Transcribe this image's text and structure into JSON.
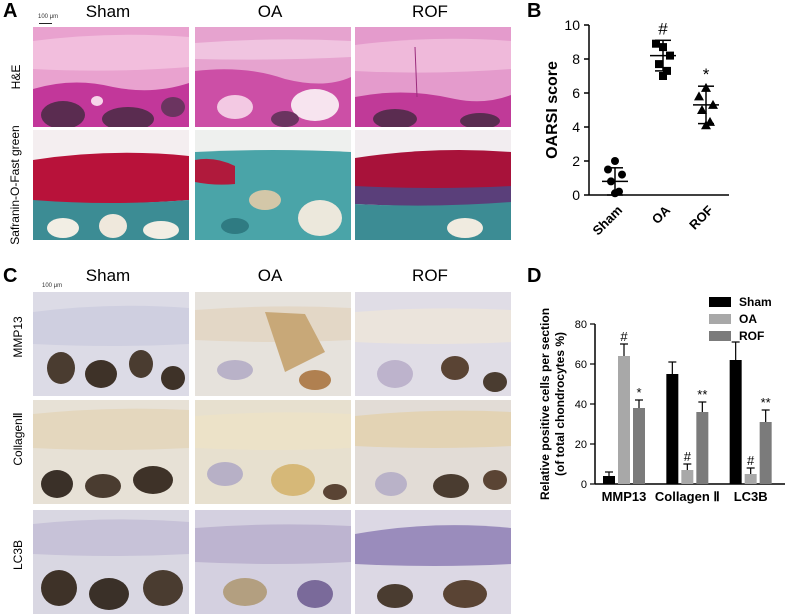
{
  "panels": {
    "A": {
      "letter": "A",
      "scale_bar": "100 μm",
      "columns": [
        "Sham",
        "OA",
        "ROF"
      ],
      "rows": [
        "H&E",
        "Safranin-O-Fast green"
      ]
    },
    "B": {
      "letter": "B"
    },
    "C": {
      "letter": "C",
      "scale_bar": "100 μm",
      "columns": [
        "Sham",
        "OA",
        "ROF"
      ],
      "rows": [
        "MMP13",
        "CollagenⅡ",
        "LC3B"
      ]
    },
    "D": {
      "letter": "D"
    }
  },
  "chart_data": [
    {
      "type": "scatter",
      "panel": "B",
      "ylabel": "OARSI score",
      "ylim": [
        0,
        10
      ],
      "yticks": [
        0,
        2,
        4,
        6,
        8,
        10
      ],
      "categories": [
        "Sham",
        "OA",
        "ROF"
      ],
      "markers": [
        "circle",
        "square",
        "triangle"
      ],
      "points": [
        [
          2.0,
          1.5,
          1.2,
          0.8,
          0.2,
          0.1
        ],
        [
          8.7,
          8.9,
          8.2,
          7.7,
          7.3,
          7.0
        ],
        [
          6.3,
          5.8,
          5.3,
          5.0,
          4.3,
          4.1
        ]
      ],
      "mean": [
        0.8,
        8.2,
        5.3
      ],
      "sd": [
        0.8,
        0.9,
        1.1
      ],
      "annotations": [
        "",
        "#",
        "*"
      ]
    },
    {
      "type": "bar",
      "panel": "D",
      "ylabel": [
        "Relative positive cells per section",
        "(of total chondrocytes %)"
      ],
      "ylim": [
        0,
        80
      ],
      "yticks": [
        0,
        20,
        40,
        60,
        80
      ],
      "categories": [
        "MMP13",
        "Collagen Ⅱ",
        "LC3B"
      ],
      "legend_position": "top-right",
      "series": [
        {
          "name": "Sham",
          "color": "#000000",
          "values": [
            4,
            55,
            62
          ],
          "errors": [
            2,
            6,
            9
          ],
          "annotations": [
            "",
            "",
            ""
          ]
        },
        {
          "name": "OA",
          "color": "#a8a8a8",
          "values": [
            64,
            7,
            5
          ],
          "errors": [
            6,
            3,
            3
          ],
          "annotations": [
            "#",
            "#",
            "#"
          ]
        },
        {
          "name": "ROF",
          "color": "#7b7b7b",
          "values": [
            38,
            36,
            31
          ],
          "errors": [
            4,
            5,
            6
          ],
          "annotations": [
            "*",
            "**",
            "**"
          ]
        }
      ]
    }
  ]
}
